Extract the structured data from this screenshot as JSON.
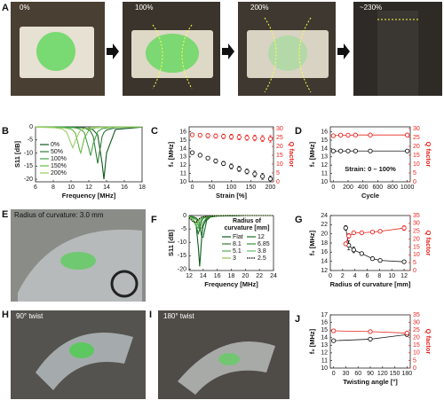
{
  "photo_panels": [
    {
      "label": "A",
      "captions": [
        "0%",
        "100%",
        "200%",
        "~230%"
      ]
    },
    {
      "label": "E",
      "caption": "Radius of curvature: 3.0 mm"
    },
    {
      "label": "H",
      "caption": "90° twist"
    },
    {
      "label": "I",
      "caption": "180° twist"
    }
  ],
  "chart_data": [
    {
      "type": "line",
      "label": "B",
      "xlabel": "Frequency [MHz]",
      "ylabel": "S11 [dB]",
      "x": [
        6,
        8,
        9,
        9.5,
        10,
        10.2,
        10.5,
        11,
        11.1,
        11.5,
        12,
        12.2,
        12.5,
        13,
        13.5,
        13.7,
        14,
        15,
        18
      ],
      "xlim": [
        6,
        18
      ],
      "xticks": [
        6,
        8,
        10,
        12,
        14,
        16,
        18
      ],
      "ylim": [
        -21,
        0
      ],
      "yticks": [
        0,
        -5,
        -10,
        -15,
        -20
      ],
      "legend": "lower left",
      "series": [
        {
          "name": "0%",
          "color": "#0f5a1e",
          "values": [
            0,
            0,
            -0.1,
            -0.1,
            -0.1,
            -0.1,
            -0.2,
            -0.2,
            -0.3,
            -0.4,
            -0.6,
            -0.8,
            -1.2,
            -3.1,
            -13.9,
            -20,
            -10,
            -1.0,
            -0.1
          ]
        },
        {
          "name": "50%",
          "color": "#2e7d32",
          "values": [
            0,
            -0.1,
            -0.1,
            -0.1,
            -0.1,
            -0.2,
            -0.2,
            -0.3,
            -0.3,
            -0.5,
            -1.2,
            -1.7,
            -3.7,
            -14,
            -3.7,
            -2.2,
            -1.2,
            -0.3,
            0
          ]
        },
        {
          "name": "100%",
          "color": "#43a047",
          "values": [
            0,
            -0.1,
            -0.1,
            -0.2,
            -0.3,
            -0.3,
            -0.4,
            -0.9,
            -1.0,
            -2.2,
            -8.3,
            -11,
            -6.4,
            -1.8,
            -0.7,
            -0.6,
            -0.4,
            -0.1,
            0
          ]
        },
        {
          "name": "150%",
          "color": "#66bb44",
          "values": [
            -0.1,
            -0.1,
            -0.3,
            -0.5,
            -0.9,
            -1.3,
            -2.5,
            -9.2,
            -10,
            -4.3,
            -1.3,
            -0.9,
            -0.6,
            -0.3,
            -0.2,
            -0.2,
            -0.1,
            -0.1,
            0
          ]
        },
        {
          "name": "200%",
          "color": "#9ccc65",
          "values": [
            -0.1,
            -0.3,
            -0.8,
            -2.0,
            -6.4,
            -8,
            -5.1,
            -1.6,
            -1.3,
            -0.7,
            -0.4,
            -0.3,
            -0.2,
            -0.2,
            -0.1,
            -0.1,
            -0.1,
            -0.1,
            0
          ]
        }
      ]
    },
    {
      "type": "scatter",
      "label": "C",
      "xlabel": "Strain [%]",
      "ylabel": "f₀ [MHz]",
      "y2label": "Q factor",
      "connect": false,
      "x": [
        0,
        20,
        40,
        60,
        80,
        100,
        120,
        140,
        160,
        180,
        200
      ],
      "xlim": [
        -8,
        208
      ],
      "xticks": [
        0,
        50,
        100,
        150,
        200
      ],
      "ylim": [
        10,
        16.6
      ],
      "yticks": [
        10,
        11,
        12,
        13,
        14,
        15,
        16
      ],
      "y2lim": [
        0,
        31
      ],
      "y2ticks": [
        0,
        5,
        10,
        15,
        20,
        25,
        30
      ],
      "series": [
        {
          "color": "#1a1a1a",
          "values": [
            13.5,
            13.2,
            12.85,
            12.5,
            12.2,
            11.85,
            11.55,
            11.25,
            10.95,
            10.65,
            10.35
          ],
          "errors": [
            0.2,
            0.2,
            0.2,
            0.25,
            0.25,
            0.3,
            0.3,
            0.3,
            0.35,
            0.35,
            0.35
          ]
        },
        {
          "color": "#e8231e",
          "axis": "y2",
          "values": [
            26.5,
            26.3,
            26.0,
            25.8,
            25.6,
            25.4,
            25.2,
            24.9,
            24.7,
            24.4,
            24.2
          ],
          "errors": [
            1,
            1,
            1.2,
            1.2,
            1.3,
            1.4,
            1.5,
            1.5,
            1.6,
            1.7,
            1.8
          ]
        }
      ]
    },
    {
      "type": "scatter",
      "label": "D",
      "xlabel": "Cycle",
      "ylabel": "f₀ [MHz]",
      "y2label": "Q factor",
      "connect": true,
      "annotation": "Strain: 0 – 100%",
      "x": [
        0,
        100,
        200,
        300,
        500,
        1000
      ],
      "xlim": [
        -40,
        1040
      ],
      "xticks": [
        0,
        200,
        400,
        600,
        800,
        1000
      ],
      "ylim": [
        10,
        16.6
      ],
      "yticks": [
        10,
        11,
        12,
        13,
        14,
        15,
        16
      ],
      "y2lim": [
        0,
        31
      ],
      "y2ticks": [
        0,
        5,
        10,
        15,
        20,
        25,
        30
      ],
      "series": [
        {
          "color": "#1a1a1a",
          "values": [
            13.7,
            13.7,
            13.7,
            13.7,
            13.7,
            13.7
          ]
        },
        {
          "color": "#e8231e",
          "axis": "y2",
          "values": [
            26.0,
            26.3,
            26.3,
            26.4,
            26.4,
            26.4
          ]
        }
      ]
    },
    {
      "type": "line",
      "label": "F",
      "xlabel": "Frequency [MHz]",
      "ylabel": "S11 [dB]",
      "x": [
        12,
        12.5,
        13,
        13.3,
        13.5,
        13.8,
        14,
        14.5,
        15,
        16,
        18,
        20,
        24
      ],
      "xlim": [
        12,
        24
      ],
      "xticks": [
        12,
        14,
        16,
        18,
        20,
        22,
        24
      ],
      "ylim": [
        -20.5,
        0
      ],
      "yticks": [
        0,
        -5,
        -10,
        -15,
        -20
      ],
      "legend": "upper right",
      "legend_columns": 2,
      "legend_title": [
        "Radius of",
        "curvature [mm]"
      ],
      "series": [
        {
          "name": "Flat",
          "color": "#0f5a1e",
          "values": [
            -0.5,
            -1.1,
            -3.8,
            -11.6,
            -19,
            -7.8,
            -3.8,
            -1.1,
            -0.5,
            -0.2,
            -0.1,
            0,
            0
          ]
        },
        {
          "name": "12",
          "color": "#1b6e2a",
          "values": [
            -0.2,
            -0.4,
            -0.9,
            -1.8,
            -3.2,
            -8.1,
            -8.1,
            -1.8,
            -0.6,
            -0.2,
            -0.1,
            0,
            0
          ]
        },
        {
          "name": "8.1",
          "color": "#2e7d32",
          "values": [
            -0.4,
            -0.9,
            -3.5,
            -7,
            -4.8,
            -1.9,
            -1.1,
            -0.4,
            -0.2,
            -0.1,
            0,
            0,
            0
          ]
        },
        {
          "name": "6.85",
          "color": "#388e3c",
          "values": [
            -0.3,
            -0.6,
            -1.5,
            -3.5,
            -5.6,
            -4.5,
            -2.6,
            -0.8,
            -0.4,
            -0.1,
            0,
            0,
            0
          ]
        },
        {
          "name": "5.1",
          "color": "#4caf50",
          "values": [
            -0.4,
            -1.0,
            -3.8,
            -4.6,
            -2.9,
            -1.3,
            -0.8,
            -0.3,
            -0.2,
            -0.1,
            0,
            0,
            0
          ]
        },
        {
          "name": "3.8",
          "color": "#66bb6a",
          "values": [
            -0.6,
            -1.6,
            -4,
            -2.6,
            -1.6,
            -0.8,
            -0.6,
            -0.3,
            -0.2,
            -0.1,
            0,
            0,
            0
          ]
        },
        {
          "name": "3",
          "color": "#8bc34a",
          "values": [
            -0.5,
            -1.3,
            -3,
            -2.1,
            -1.3,
            -0.7,
            -0.5,
            -0.3,
            -0.2,
            -0.1,
            0,
            0,
            0
          ]
        },
        {
          "name": "2.5",
          "color": "#000000",
          "style": "dotted",
          "values": [
            -0.8,
            -2.2,
            -2.6,
            -1.5,
            -1.0,
            -0.6,
            -0.5,
            -0.3,
            -0.2,
            -0.1,
            0,
            0,
            0
          ]
        }
      ]
    },
    {
      "type": "scatter",
      "label": "G",
      "xlabel": "Radius of curvature [mm]",
      "ylabel": "f₀ [MHz]",
      "y2label": "Q factor",
      "connect": true,
      "x": [
        2.5,
        3,
        3.8,
        5.1,
        6.85,
        8.1,
        12
      ],
      "xlim": [
        0,
        13
      ],
      "xticks": [
        0,
        2,
        4,
        6,
        8,
        10,
        12
      ],
      "ylim": [
        12,
        24
      ],
      "yticks": [
        12,
        14,
        16,
        18,
        20,
        22,
        24
      ],
      "y2lim": [
        0,
        35
      ],
      "y2ticks": [
        0,
        5,
        10,
        15,
        20,
        25,
        30,
        35
      ],
      "series": [
        {
          "color": "#1a1a1a",
          "values": [
            21.3,
            17.5,
            16.5,
            15.7,
            14.6,
            14.2,
            13.9
          ],
          "errors": [
            0.5,
            1.0,
            0.6,
            0.3,
            0.3,
            0.2,
            0.2
          ]
        },
        {
          "color": "#e8231e",
          "axis": "y2",
          "values": [
            17,
            22,
            24,
            24,
            24.5,
            25,
            27
          ],
          "errors": [
            1,
            1.5,
            1,
            1,
            1,
            1,
            1.5
          ]
        }
      ]
    },
    {
      "type": "scatter",
      "label": "J",
      "xlabel": "Twisting angle [°]",
      "ylabel": "f₀ [MHz]",
      "y2label": "Q factor",
      "connect": true,
      "x": [
        0,
        90,
        180
      ],
      "xlim": [
        -8,
        188
      ],
      "xticks": [
        0,
        30,
        60,
        90,
        120,
        150,
        180
      ],
      "ylim": [
        10,
        17
      ],
      "yticks": [
        10,
        11,
        12,
        13,
        14,
        15,
        16,
        17
      ],
      "y2lim": [
        0,
        35
      ],
      "y2ticks": [
        0,
        5,
        10,
        15,
        20,
        25,
        30,
        35
      ],
      "series": [
        {
          "color": "#1a1a1a",
          "values": [
            13.6,
            13.8,
            14.4
          ]
        },
        {
          "color": "#e8231e",
          "axis": "y2",
          "values": [
            24.5,
            24,
            23
          ]
        }
      ]
    }
  ]
}
